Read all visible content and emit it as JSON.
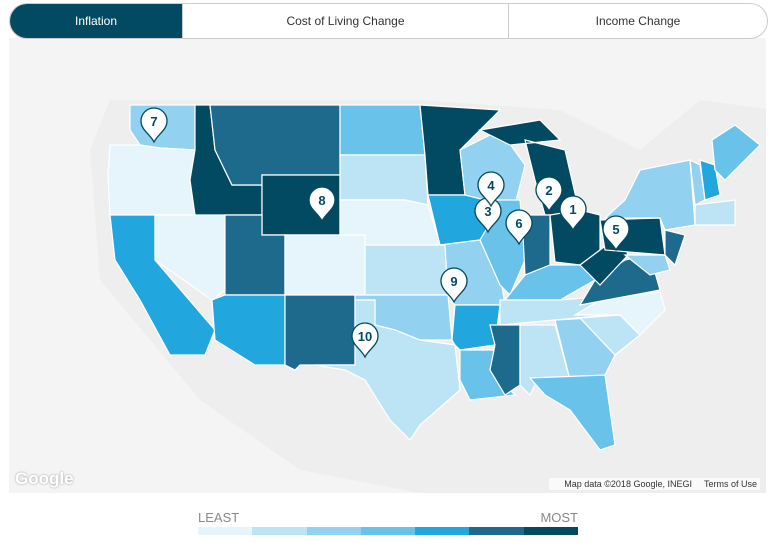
{
  "tabs": [
    {
      "label": "Inflation",
      "active": true
    },
    {
      "label": "Cost of Living Change"
    },
    {
      "label": "Income Change"
    }
  ],
  "map": {
    "logo": "Google",
    "attribution": "Map data ©2018 Google, INEGI",
    "terms": "Terms of Use"
  },
  "legend": {
    "least": "LEAST",
    "most": "MOST",
    "colors": [
      "#e6f4fb",
      "#bde4f4",
      "#93d1f0",
      "#68c2ea",
      "#22a6de",
      "#1d6a8d",
      "#024a61"
    ]
  },
  "states": {
    "WA": 2,
    "OR": 0,
    "CA": 4,
    "NV": 0,
    "ID": 6,
    "MT": 5,
    "WY": 6,
    "UT": 5,
    "CO": 0,
    "AZ": 4,
    "NM": 5,
    "ND": 3,
    "SD": 1,
    "NE": 0,
    "KS": 1,
    "OK": 2,
    "TX": 1,
    "MN": 6,
    "IA": 4,
    "MO": 2,
    "AR": 4,
    "LA": 3,
    "WI": 2,
    "IL": 3,
    "MI": 6,
    "IN": 5,
    "OH": 6,
    "KY": 3,
    "TN": 1,
    "MS": 5,
    "AL": 1,
    "GA": 2,
    "FL": 3,
    "SC": 1,
    "NC": 0,
    "VA": 5,
    "WV": 6,
    "PA": 6,
    "NY": 2,
    "NJ": 5,
    "MD": 2,
    "VT": 2,
    "NH": 4,
    "ME": 3,
    "MA": 1
  },
  "pins": [
    {
      "rank": "1",
      "state": "OH"
    },
    {
      "rank": "2",
      "state": "MI"
    },
    {
      "rank": "3",
      "state": "IA"
    },
    {
      "rank": "4",
      "state": "WI"
    },
    {
      "rank": "5",
      "state": "PA"
    },
    {
      "rank": "6",
      "state": "IN"
    },
    {
      "rank": "7",
      "state": "WA"
    },
    {
      "rank": "8",
      "state": "WY"
    },
    {
      "rank": "9",
      "state": "MO"
    },
    {
      "rank": "10",
      "state": "TX"
    }
  ]
}
